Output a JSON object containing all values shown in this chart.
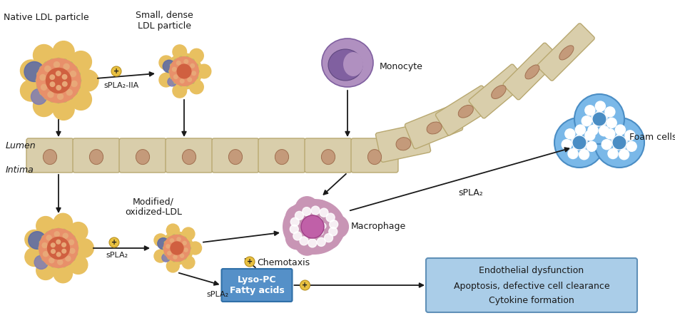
{
  "bg_color": "#ffffff",
  "cell_wall_color": "#d9ceab",
  "cell_wall_edge": "#b8a870",
  "cell_nucleus_color": "#c49a7a",
  "lumen_text": "Lumen",
  "intima_text": "Intima",
  "native_ldl_label": "Native LDL particle",
  "small_dense_ldl_label": "Small, dense\nLDL particle",
  "spla2_iia_label": "sPLA₂-IIA",
  "spla2_label": "sPLA₂",
  "monocyte_label": "Monocyte",
  "macrophage_label": "Macrophage",
  "modified_ldl_label": "Modified/\noxidized-LDL",
  "lyso_pc_label": "Lyso-PC\nFatty acids",
  "chemotaxis_label": "Chemotaxis",
  "foam_cells_label": "Foam cells",
  "box_line1": "Endothelial dysfunction",
  "box_line2": "Apoptosis, defective cell clearance",
  "box_line3": "Cytokine formation",
  "ldl_yellow_color": "#e8c060",
  "ldl_green_dot_color": "#b8c060",
  "ldl_orange_color": "#e8906a",
  "ldl_ring_color": "#e07858",
  "ldl_inner_color": "#d06040",
  "ldl_salmon_dot": "#e8a878",
  "ldl_blue_color": "#5060a0",
  "monocyte_color": "#b090c0",
  "monocyte_dark": "#8060a0",
  "macrophage_outer": "#c895b5",
  "macrophage_inner": "#d070a8",
  "macrophage_nuc": "#c060a0",
  "foam_cell_color": "#7ab8e8",
  "foam_cell_dark": "#4a8dc4",
  "foam_cell_center": "#5090cc",
  "box_fill": "#aacde8",
  "box_edge": "#6090b8",
  "arrow_color": "#1a1a1a",
  "plus_circle_color": "#e8c040",
  "plus_text_color": "#1a1a1a",
  "text_color": "#1a1a1a",
  "fontsize_label": 9,
  "fontsize_small": 8
}
